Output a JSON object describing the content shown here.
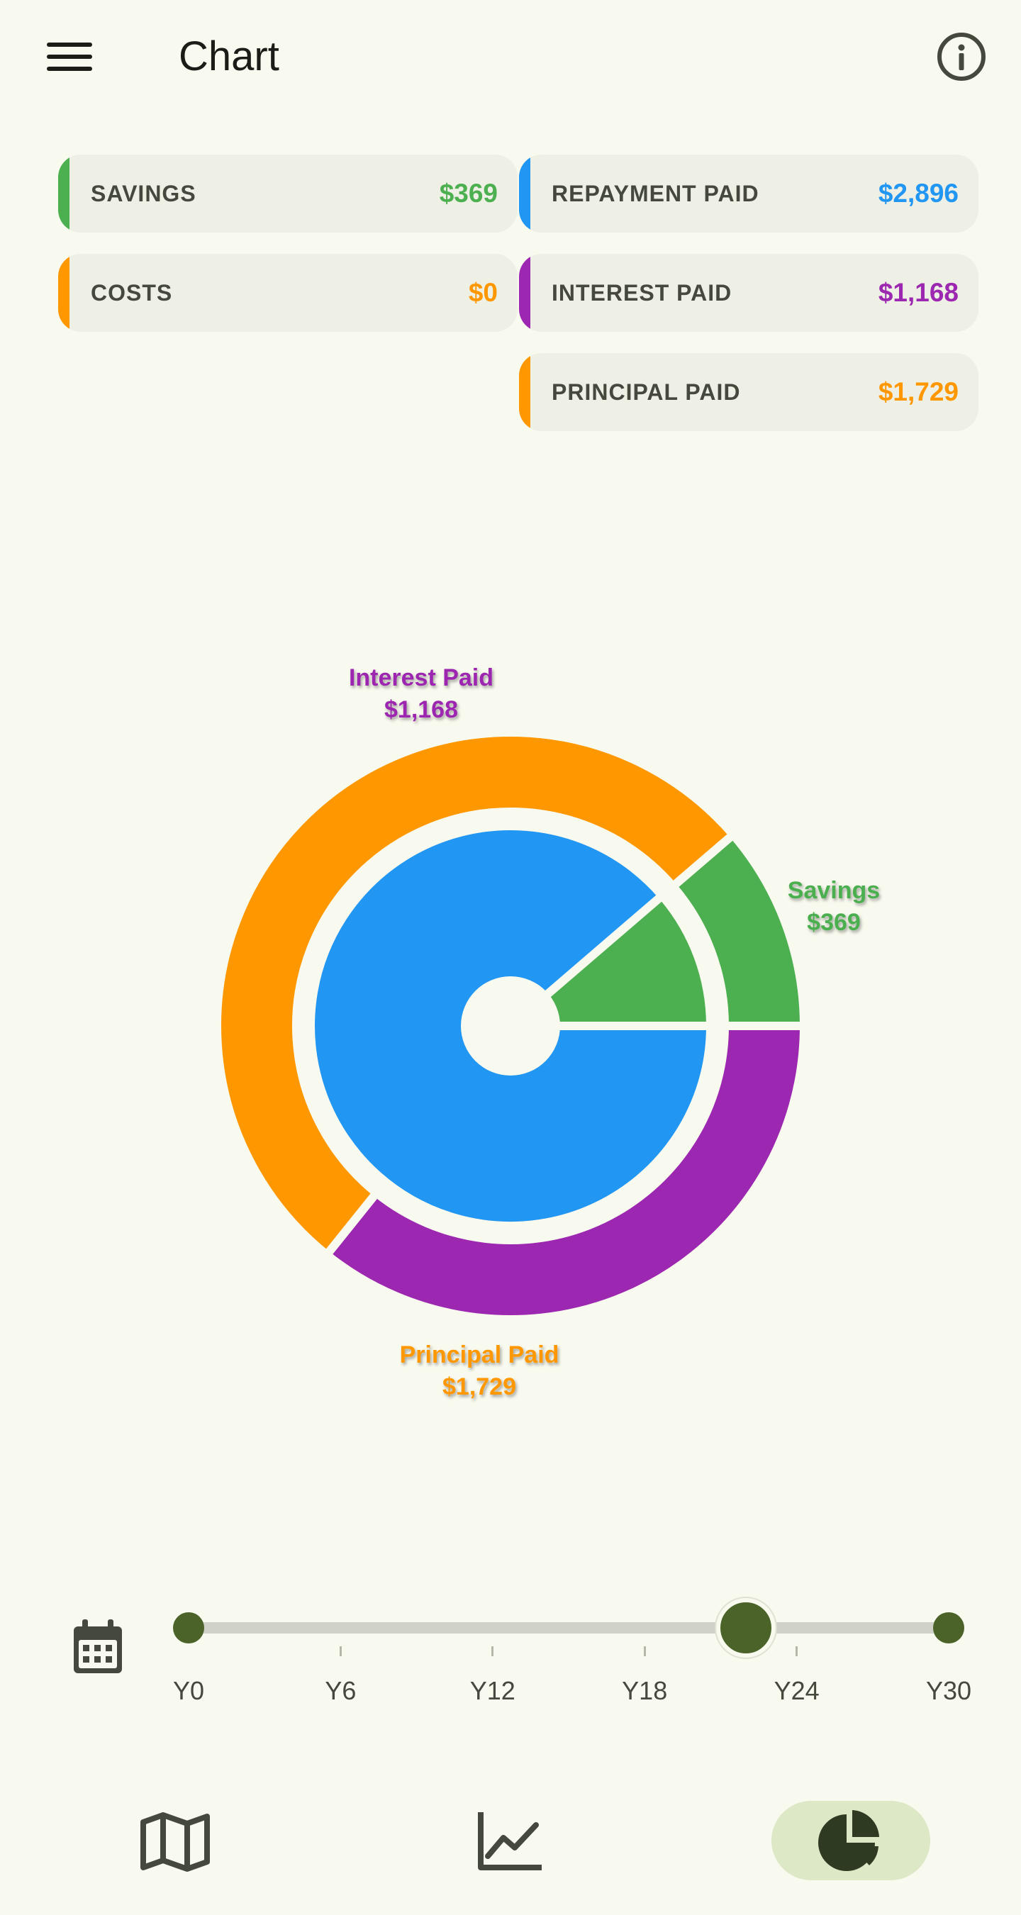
{
  "appbar": {
    "title": "Chart",
    "menu_icon": "menu-icon",
    "info_icon": "info-icon"
  },
  "cards": [
    {
      "label": "SAVINGS",
      "value": "$369",
      "color": "#4caf50"
    },
    {
      "label": "REPAYMENT PAID",
      "value": "$2,896",
      "color": "#2196f3"
    },
    {
      "label": "COSTS",
      "value": "$0",
      "color": "#ff9800"
    },
    {
      "label": "INTEREST PAID",
      "value": "$1,168",
      "color": "#9c27b0"
    },
    {
      "label": "PRINCIPAL PAID",
      "value": "$1,729",
      "color": "#ff9800"
    }
  ],
  "chart_data": {
    "type": "pie",
    "inner_ring": [
      {
        "name": "Savings",
        "value": 369,
        "color": "#4caf50"
      },
      {
        "name": "Repayment Paid",
        "value": 2896,
        "color": "#2196f3"
      }
    ],
    "outer_ring": [
      {
        "name": "Savings",
        "value": 369,
        "color": "#4caf50"
      },
      {
        "name": "Principal Paid",
        "value": 1729,
        "color": "#ff9800"
      },
      {
        "name": "Interest Paid",
        "value": 1168,
        "color": "#9c27b0"
      }
    ],
    "labels": [
      {
        "name": "Interest Paid",
        "value": "$1,168",
        "color": "#9c27b0"
      },
      {
        "name": "Savings",
        "value": "$369",
        "color": "#4caf50"
      },
      {
        "name": "Principal Paid",
        "value": "$1,729",
        "color": "#ff9800"
      }
    ]
  },
  "timeline": {
    "ticks": [
      "Y0",
      "Y6",
      "Y12",
      "Y18",
      "Y24",
      "Y30"
    ],
    "min_year": 0,
    "max_year": 30,
    "current_year": 22,
    "calendar_icon": "calendar-icon"
  },
  "bottom_nav": [
    {
      "name": "map",
      "icon": "map-icon",
      "active": false
    },
    {
      "name": "line-chart",
      "icon": "line-chart-icon",
      "active": false
    },
    {
      "name": "pie-chart",
      "icon": "pie-chart-icon",
      "active": true
    }
  ]
}
